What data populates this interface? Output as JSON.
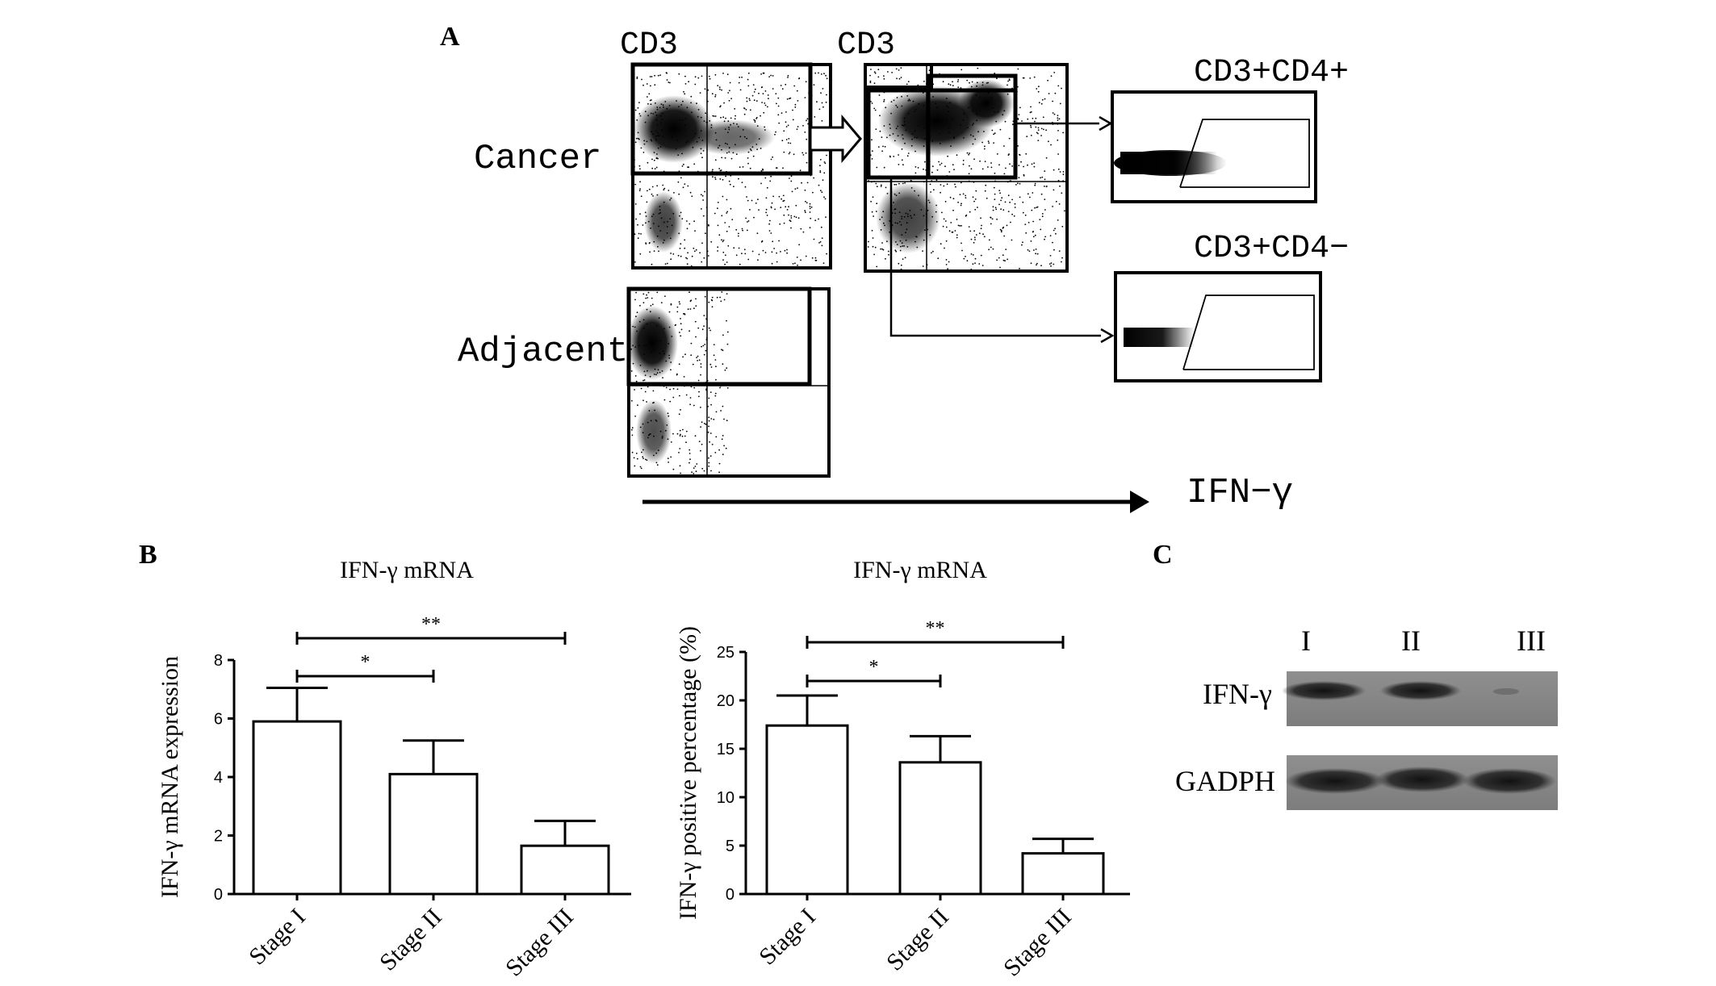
{
  "panelA": {
    "letter": "A",
    "cd3_left": "CD3",
    "cd3_mid": "CD3",
    "cancer": "Cancer",
    "adjacent": "Adjacent",
    "cd4pos": "CD3+CD4+",
    "cd4neg": "CD3+CD4−",
    "ifn_axis": "IFN−γ"
  },
  "panelB": {
    "letter": "B",
    "chart_data": [
      {
        "type": "bar",
        "title": "IFN-γ mRNA",
        "ylabel": "IFN-γ mRNA expression",
        "xlabel": "",
        "categories": [
          "Stage I",
          "Stage II",
          "Stage III"
        ],
        "values": [
          5.9,
          4.1,
          1.65
        ],
        "errors": [
          1.15,
          1.15,
          0.85
        ],
        "ylim": [
          0,
          8
        ],
        "yticks": [
          0,
          2,
          4,
          6,
          8
        ],
        "significance": [
          {
            "from": 0,
            "to": 1,
            "label": "*"
          },
          {
            "from": 0,
            "to": 2,
            "label": "**"
          }
        ]
      },
      {
        "type": "bar",
        "title": "IFN-γ mRNA",
        "ylabel": "IFN-γ positive percentage (%)",
        "xlabel": "",
        "categories": [
          "Stage I",
          "Stage II",
          "Stage III"
        ],
        "values": [
          17.4,
          13.6,
          4.2
        ],
        "errors": [
          3.1,
          2.7,
          1.5
        ],
        "ylim": [
          0,
          25
        ],
        "yticks": [
          0,
          5,
          10,
          15,
          20,
          25
        ],
        "significance": [
          {
            "from": 0,
            "to": 1,
            "label": "*"
          },
          {
            "from": 0,
            "to": 2,
            "label": "**"
          }
        ]
      }
    ]
  },
  "panelC": {
    "letter": "C",
    "lanes": [
      "I",
      "II",
      "III"
    ],
    "rows": [
      "IFN-γ",
      "GADPH"
    ]
  }
}
